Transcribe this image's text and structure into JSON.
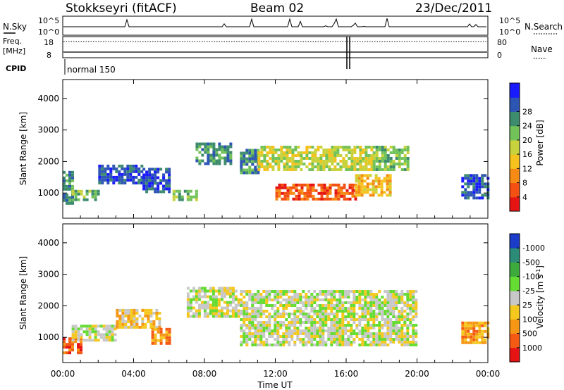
{
  "header": {
    "station": "Stokkseyri (fitACF)",
    "beam": "Beam 02",
    "date": "23/Dec/2011"
  },
  "top_panels": {
    "nsky_label": "N.Sky",
    "nsearch_label": "N.Search",
    "nsky_ticks": [
      "10^5",
      "10^0"
    ],
    "nsearch_ticks": [
      "10^5",
      "10^0"
    ],
    "freq_label_1": "Freq.",
    "freq_label_2": "[MHz]",
    "freq_ticks": [
      "18",
      "8"
    ],
    "nave_label": "Nave",
    "nave_ticks": [
      "80",
      "0"
    ],
    "cpid_label": "CPID",
    "cpid_value": "normal 150"
  },
  "chart_data": [
    {
      "type": "heatmap",
      "name": "power",
      "ylabel": "Slant Range [km]",
      "xlabel": "Time UT",
      "ylim": [
        200,
        4600
      ],
      "yticks": [
        "1000",
        "2000",
        "3000",
        "4000"
      ],
      "colorbar_label": "Power [dB]",
      "colorbar_ticks": [
        "4",
        "8",
        "12",
        "16",
        "20",
        "24",
        "28"
      ],
      "colorbar_colors": [
        "#1a1aff",
        "#2d55b4",
        "#3d8c6e",
        "#72c25a",
        "#c8d23c",
        "#f5c21e",
        "#f58a14",
        "#f55014",
        "#e61414"
      ],
      "regions": [
        {
          "t0": 0.0,
          "t1": 0.5,
          "r0": 700,
          "r1": 1700,
          "level": 2
        },
        {
          "t0": 0.5,
          "t1": 2.0,
          "r0": 800,
          "r1": 1100,
          "level": 3
        },
        {
          "t0": 2.0,
          "t1": 4.5,
          "r0": 1300,
          "r1": 1900,
          "level": 1
        },
        {
          "t0": 4.5,
          "t1": 6.0,
          "r0": 1000,
          "r1": 1800,
          "level": 1
        },
        {
          "t0": 6.2,
          "t1": 7.5,
          "r0": 800,
          "r1": 1100,
          "level": 3
        },
        {
          "t0": 7.5,
          "t1": 9.5,
          "r0": 1900,
          "r1": 2600,
          "level": 2
        },
        {
          "t0": 10.0,
          "t1": 11.0,
          "r0": 1600,
          "r1": 2400,
          "level": 2
        },
        {
          "t0": 11.0,
          "t1": 17.5,
          "r0": 1700,
          "r1": 2500,
          "level": 4
        },
        {
          "t0": 12.0,
          "t1": 16.5,
          "r0": 800,
          "r1": 1300,
          "level": 7
        },
        {
          "t0": 16.5,
          "t1": 18.5,
          "r0": 900,
          "r1": 1600,
          "level": 5
        },
        {
          "t0": 17.5,
          "t1": 19.5,
          "r0": 1700,
          "r1": 2500,
          "level": 3
        },
        {
          "t0": 22.5,
          "t1": 24.0,
          "r0": 800,
          "r1": 1600,
          "level": 1
        }
      ]
    },
    {
      "type": "heatmap",
      "name": "velocity",
      "ylabel": "Slant Range [km]",
      "xlabel": "Time UT",
      "ylim": [
        200,
        4600
      ],
      "yticks": [
        "1000",
        "2000",
        "3000",
        "4000"
      ],
      "colorbar_label": "Velocity [m s",
      "colorbar_label_sup": "-1",
      "colorbar_label_end": "]",
      "colorbar_ticks": [
        "1000",
        "500",
        "100",
        "25",
        "-25",
        "-100",
        "-500",
        "-1000"
      ],
      "colorbar_colors": [
        "#1a3cc8",
        "#2d8c78",
        "#3caa3c",
        "#64dc32",
        "#c8c8c8",
        "#f5c81e",
        "#f59614",
        "#f55a14",
        "#e61414"
      ],
      "regions": [
        {
          "t0": 0.0,
          "t1": 1.0,
          "r0": 500,
          "r1": 1000,
          "level": 7
        },
        {
          "t0": 0.5,
          "t1": 3.0,
          "r0": 900,
          "r1": 1400,
          "level": 4
        },
        {
          "t0": 3.0,
          "t1": 5.5,
          "r0": 1300,
          "r1": 1900,
          "level": 5
        },
        {
          "t0": 5.0,
          "t1": 6.0,
          "r0": 800,
          "r1": 1300,
          "level": 6
        },
        {
          "t0": 7.0,
          "t1": 10.0,
          "r0": 1700,
          "r1": 2600,
          "level": 4
        },
        {
          "t0": 10.0,
          "t1": 20.0,
          "r0": 800,
          "r1": 2500,
          "level": 4
        },
        {
          "t0": 22.5,
          "t1": 24.0,
          "r0": 800,
          "r1": 1500,
          "level": 6
        }
      ]
    }
  ],
  "x_axis": {
    "ticks": [
      "00:00",
      "04:00",
      "08:00",
      "12:00",
      "16:00",
      "20:00",
      "00:00"
    ],
    "label": "Time UT"
  }
}
